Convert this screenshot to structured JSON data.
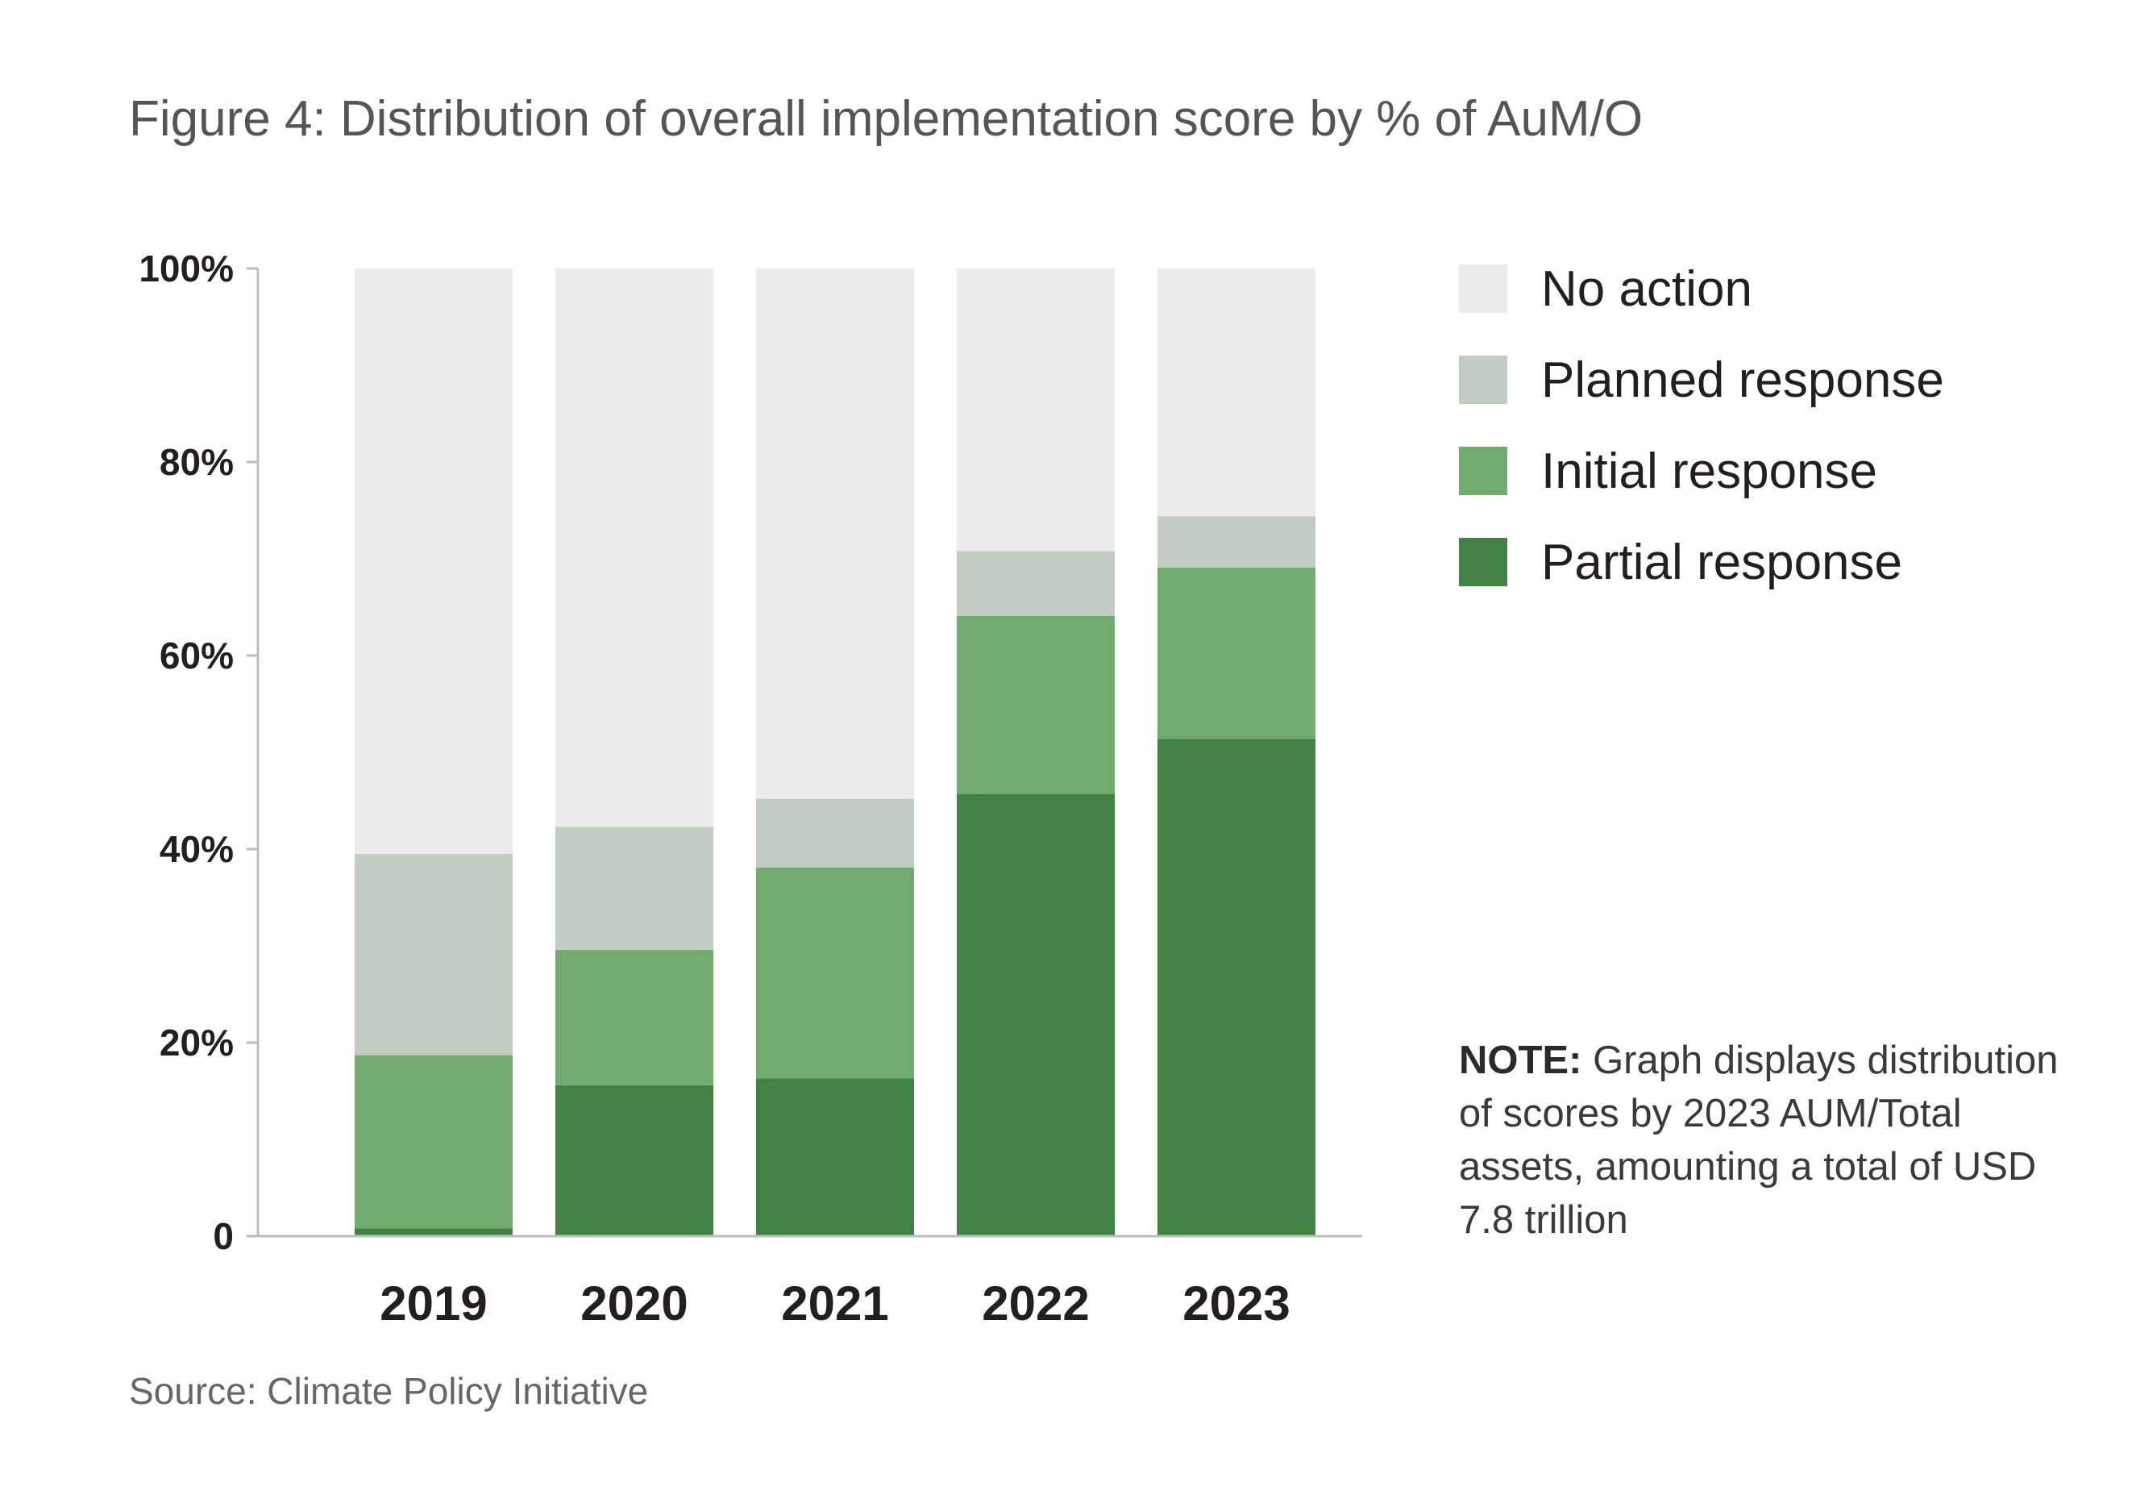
{
  "title": "Figure 4: Distribution of overall implementation score by % of AuM/O",
  "legend": [
    {
      "label": "No action",
      "color": "#ececec"
    },
    {
      "label": "Planned response",
      "color": "#c1cdc0"
    },
    {
      "label": "Initial response",
      "color": "#72ab6e"
    },
    {
      "label": "Partial response",
      "color": "#428245"
    }
  ],
  "note": {
    "label": "NOTE:",
    "text": "Graph displays distribution of scores by 2023 AUM/Total assets, amounting a total of USD 7.8 trillion"
  },
  "source": "Source: Climate Policy Initiative",
  "chart_data": {
    "type": "bar",
    "stacked": true,
    "categories": [
      "2019",
      "2020",
      "2021",
      "2022",
      "2023"
    ],
    "series": [
      {
        "name": "Partial response",
        "color": "#428245",
        "values": [
          0.8,
          15.6,
          16.3,
          45.7,
          51.4
        ]
      },
      {
        "name": "Initial response",
        "color": "#72ab6e",
        "values": [
          17.9,
          14.0,
          21.8,
          18.4,
          17.7
        ]
      },
      {
        "name": "Planned response",
        "color": "#c1cdc0",
        "values": [
          20.8,
          12.7,
          7.1,
          6.7,
          5.3
        ]
      },
      {
        "name": "No action",
        "color": "#ececec",
        "values": [
          60.5,
          57.7,
          54.8,
          29.2,
          25.6
        ]
      }
    ],
    "ylim": [
      0,
      100
    ],
    "yticks": [
      0,
      20,
      40,
      60,
      80,
      100
    ],
    "ytick_labels": [
      "0",
      "20%",
      "40%",
      "60%",
      "80%",
      "100%"
    ],
    "xlabel": "",
    "ylabel": "",
    "grid": false,
    "legend_position": "right"
  }
}
